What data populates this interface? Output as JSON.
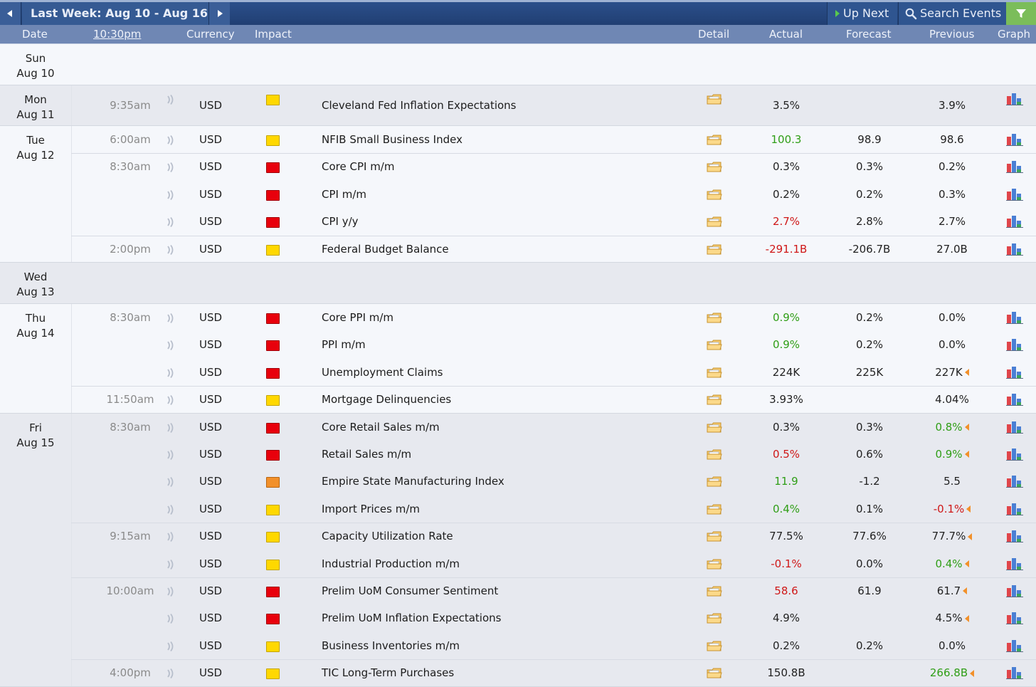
{
  "topbar": {
    "week_label": "Last Week: Aug 10 - Aug 16",
    "up_next_label": "Up Next",
    "search_label": "Search Events"
  },
  "header": {
    "date": "Date",
    "time": "10:30pm",
    "currency": "Currency",
    "impact": "Impact",
    "detail": "Detail",
    "actual": "Actual",
    "forecast": "Forecast",
    "previous": "Previous",
    "graph": "Graph"
  },
  "colors": {
    "topbar": "#213f73",
    "header": "#6f87b4",
    "impact_high": "#e8000c",
    "impact_medium": "#f2902a",
    "impact_low": "#ffd800",
    "better": "#2f9e16",
    "worse": "#cf1717"
  },
  "days": [
    {
      "day": "Sun",
      "date": "Aug 10",
      "events": []
    },
    {
      "day": "Mon",
      "date": "Aug 11",
      "events": [
        {
          "time": "9:35am",
          "currency": "USD",
          "impact": "low",
          "event": "Cleveland Fed Inflation Expectations",
          "actual": "3.5%",
          "actual_status": "neutral",
          "forecast": "",
          "previous": "3.9%",
          "previous_status": "neutral",
          "revised": false
        }
      ]
    },
    {
      "day": "Tue",
      "date": "Aug 12",
      "events": [
        {
          "time": "6:00am",
          "currency": "USD",
          "impact": "low",
          "event": "NFIB Small Business Index",
          "actual": "100.3",
          "actual_status": "better",
          "forecast": "98.9",
          "previous": "98.6",
          "previous_status": "neutral",
          "revised": false
        },
        {
          "time": "8:30am",
          "currency": "USD",
          "impact": "high",
          "event": "Core CPI m/m",
          "actual": "0.3%",
          "actual_status": "neutral",
          "forecast": "0.3%",
          "previous": "0.2%",
          "previous_status": "neutral",
          "revised": false
        },
        {
          "time": "",
          "currency": "USD",
          "impact": "high",
          "event": "CPI m/m",
          "actual": "0.2%",
          "actual_status": "neutral",
          "forecast": "0.2%",
          "previous": "0.3%",
          "previous_status": "neutral",
          "revised": false
        },
        {
          "time": "",
          "currency": "USD",
          "impact": "high",
          "event": "CPI y/y",
          "actual": "2.7%",
          "actual_status": "worse",
          "forecast": "2.8%",
          "previous": "2.7%",
          "previous_status": "neutral",
          "revised": false
        },
        {
          "time": "2:00pm",
          "currency": "USD",
          "impact": "low",
          "event": "Federal Budget Balance",
          "actual": "-291.1B",
          "actual_status": "worse",
          "forecast": "-206.7B",
          "previous": "27.0B",
          "previous_status": "neutral",
          "revised": false
        }
      ]
    },
    {
      "day": "Wed",
      "date": "Aug 13",
      "events": []
    },
    {
      "day": "Thu",
      "date": "Aug 14",
      "events": [
        {
          "time": "8:30am",
          "currency": "USD",
          "impact": "high",
          "event": "Core PPI m/m",
          "actual": "0.9%",
          "actual_status": "better",
          "forecast": "0.2%",
          "previous": "0.0%",
          "previous_status": "neutral",
          "revised": false
        },
        {
          "time": "",
          "currency": "USD",
          "impact": "high",
          "event": "PPI m/m",
          "actual": "0.9%",
          "actual_status": "better",
          "forecast": "0.2%",
          "previous": "0.0%",
          "previous_status": "neutral",
          "revised": false
        },
        {
          "time": "",
          "currency": "USD",
          "impact": "high",
          "event": "Unemployment Claims",
          "actual": "224K",
          "actual_status": "neutral",
          "forecast": "225K",
          "previous": "227K",
          "previous_status": "neutral",
          "revised": true
        },
        {
          "time": "11:50am",
          "currency": "USD",
          "impact": "low",
          "event": "Mortgage Delinquencies",
          "actual": "3.93%",
          "actual_status": "neutral",
          "forecast": "",
          "previous": "4.04%",
          "previous_status": "neutral",
          "revised": false
        }
      ]
    },
    {
      "day": "Fri",
      "date": "Aug 15",
      "events": [
        {
          "time": "8:30am",
          "currency": "USD",
          "impact": "high",
          "event": "Core Retail Sales m/m",
          "actual": "0.3%",
          "actual_status": "neutral",
          "forecast": "0.3%",
          "previous": "0.8%",
          "previous_status": "better",
          "revised": true
        },
        {
          "time": "",
          "currency": "USD",
          "impact": "high",
          "event": "Retail Sales m/m",
          "actual": "0.5%",
          "actual_status": "worse",
          "forecast": "0.6%",
          "previous": "0.9%",
          "previous_status": "better",
          "revised": true
        },
        {
          "time": "",
          "currency": "USD",
          "impact": "medium",
          "event": "Empire State Manufacturing Index",
          "actual": "11.9",
          "actual_status": "better",
          "forecast": "-1.2",
          "previous": "5.5",
          "previous_status": "neutral",
          "revised": false
        },
        {
          "time": "",
          "currency": "USD",
          "impact": "low",
          "event": "Import Prices m/m",
          "actual": "0.4%",
          "actual_status": "better",
          "forecast": "0.1%",
          "previous": "-0.1%",
          "previous_status": "worse",
          "revised": true
        },
        {
          "time": "9:15am",
          "currency": "USD",
          "impact": "low",
          "event": "Capacity Utilization Rate",
          "actual": "77.5%",
          "actual_status": "neutral",
          "forecast": "77.6%",
          "previous": "77.7%",
          "previous_status": "neutral",
          "revised": true
        },
        {
          "time": "",
          "currency": "USD",
          "impact": "low",
          "event": "Industrial Production m/m",
          "actual": "-0.1%",
          "actual_status": "worse",
          "forecast": "0.0%",
          "previous": "0.4%",
          "previous_status": "better",
          "revised": true
        },
        {
          "time": "10:00am",
          "currency": "USD",
          "impact": "high",
          "event": "Prelim UoM Consumer Sentiment",
          "actual": "58.6",
          "actual_status": "worse",
          "forecast": "61.9",
          "previous": "61.7",
          "previous_status": "neutral",
          "revised": true
        },
        {
          "time": "",
          "currency": "USD",
          "impact": "high",
          "event": "Prelim UoM Inflation Expectations",
          "actual": "4.9%",
          "actual_status": "neutral",
          "forecast": "",
          "previous": "4.5%",
          "previous_status": "neutral",
          "revised": true
        },
        {
          "time": "",
          "currency": "USD",
          "impact": "low",
          "event": "Business Inventories m/m",
          "actual": "0.2%",
          "actual_status": "neutral",
          "forecast": "0.2%",
          "previous": "0.0%",
          "previous_status": "neutral",
          "revised": false
        },
        {
          "time": "4:00pm",
          "currency": "USD",
          "impact": "low",
          "event": "TIC Long-Term Purchases",
          "actual": "150.8B",
          "actual_status": "neutral",
          "forecast": "",
          "previous": "266.8B",
          "previous_status": "better",
          "revised": true
        }
      ]
    }
  ]
}
